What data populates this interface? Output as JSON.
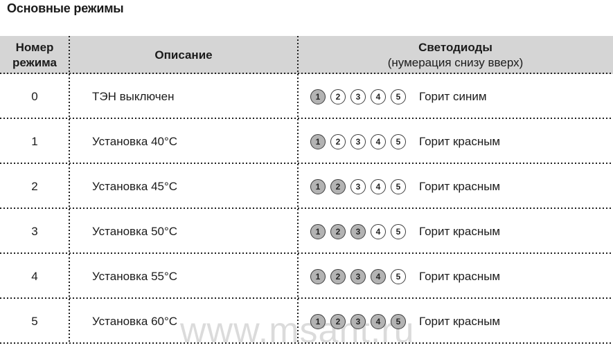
{
  "page_title": "Основные режимы",
  "watermark": "www.msant.ru",
  "colors": {
    "header_background": "#d5d5d5",
    "led_filled": "#b3b3b3",
    "led_border": "#3c3c3c",
    "text": "#1b1b1b",
    "dotted_line": "#1f1f1f"
  },
  "table": {
    "headers": {
      "mode_number_line1": "Номер",
      "mode_number_line2": "режима",
      "description": "Описание",
      "leds_title": "Светодиоды",
      "leds_subtitle": "(нумерация снизу вверх)"
    },
    "led_labels": [
      "1",
      "2",
      "3",
      "4",
      "5"
    ],
    "rows": [
      {
        "num": "0",
        "desc": "ТЭН выключен",
        "leds_on": 1,
        "status": "Горит синим"
      },
      {
        "num": "1",
        "desc": "Установка 40°С",
        "leds_on": 1,
        "status": "Горит красным"
      },
      {
        "num": "2",
        "desc": "Установка 45°С",
        "leds_on": 2,
        "status": "Горит красным"
      },
      {
        "num": "3",
        "desc": "Установка 50°С",
        "leds_on": 3,
        "status": "Горит красным"
      },
      {
        "num": "4",
        "desc": "Установка 55°С",
        "leds_on": 4,
        "status": "Горит красным"
      },
      {
        "num": "5",
        "desc": "Установка 60°С",
        "leds_on": 5,
        "status": "Горит красным"
      }
    ]
  }
}
